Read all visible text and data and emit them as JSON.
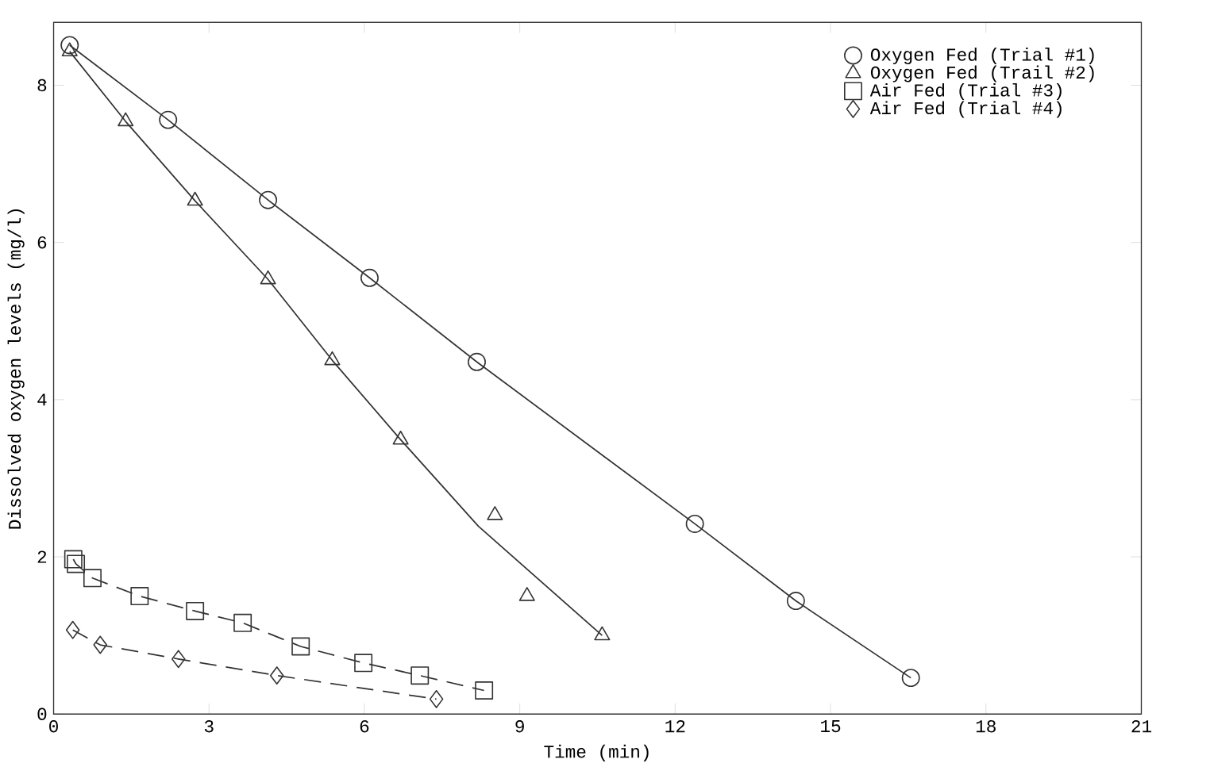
{
  "chart_data": {
    "type": "scatter",
    "xlabel": "Time (min)",
    "ylabel": "Dissolved oxygen levels (mg/l)",
    "xlim": [
      0,
      21
    ],
    "ylim": [
      0,
      8.8
    ],
    "xticks": [
      0,
      3,
      6,
      9,
      12,
      15,
      18,
      21
    ],
    "yticks": [
      0,
      2,
      4,
      6,
      8
    ],
    "legend": "top right",
    "series": [
      {
        "name": "Oxygen Fed (Trial #1)",
        "type": "line",
        "marker": "circle",
        "line_style": "solid",
        "color": "#333333",
        "x": [
          0.31,
          2.21,
          4.14,
          6.1,
          8.17,
          12.38,
          14.33,
          16.55
        ],
        "values": [
          8.51,
          7.56,
          6.54,
          5.55,
          4.48,
          2.42,
          1.44,
          0.46
        ]
      },
      {
        "name": "Oxygen Fed (Trail #2)",
        "marker": "triangle",
        "color": "#333333",
        "x": [
          0.31,
          1.39,
          2.73,
          4.14,
          5.38,
          6.7,
          8.52,
          9.14,
          10.59
        ],
        "values": [
          8.43,
          7.54,
          6.53,
          5.53,
          4.5,
          3.49,
          2.53,
          1.5,
          1.0
        ]
      },
      {
        "type": "line",
        "marker": "none",
        "line_style": "solid",
        "color": "#333333",
        "x": [
          0.31,
          1.39,
          2.73,
          4.14,
          5.38,
          6.7,
          8.2,
          10.59
        ],
        "values": [
          8.43,
          7.54,
          6.53,
          5.53,
          4.5,
          3.49,
          2.39,
          1.0
        ]
      },
      {
        "name": "Air Fed (Trial #3)",
        "type": "line",
        "marker": "square",
        "line_style": "dashed",
        "color": "#333333",
        "x": [
          0.38,
          0.43,
          0.75,
          1.66,
          2.73,
          3.65,
          4.77,
          5.98,
          7.07,
          8.31
        ],
        "values": [
          1.97,
          1.91,
          1.73,
          1.5,
          1.31,
          1.16,
          0.86,
          0.65,
          0.49,
          0.3
        ]
      },
      {
        "name": "Air Fed (Trial #4)",
        "type": "line",
        "marker": "diamond",
        "line_style": "dashed",
        "color": "#333333",
        "x": [
          0.37,
          0.9,
          2.41,
          4.31,
          7.39
        ],
        "values": [
          1.07,
          0.88,
          0.7,
          0.49,
          0.19
        ]
      }
    ]
  }
}
